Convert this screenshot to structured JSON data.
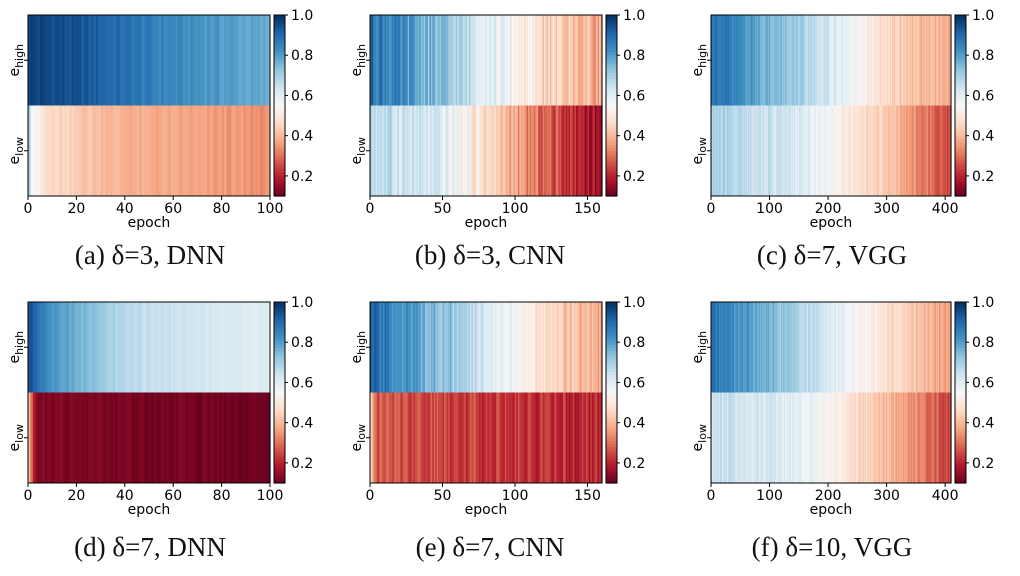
{
  "figure": {
    "colormap": "RdBu",
    "colors": {
      "red": "#67001f",
      "white": "#f7f7f7",
      "blue": "#053061"
    }
  },
  "chart_data": [
    {
      "type": "heatmap",
      "caption": "(a) δ=3, DNN",
      "rows": [
        "e_high",
        "e_low"
      ],
      "xlabel": "epoch",
      "xticks": [
        "0",
        "20",
        "40",
        "60",
        "80",
        "100"
      ],
      "xlim": [
        0,
        100
      ],
      "colorbar": {
        "range": [
          0.1,
          1.0
        ],
        "ticks": [
          "1.0",
          "0.8",
          "0.6",
          "0.4",
          "0.2"
        ]
      },
      "high_profile": [
        [
          0,
          0.97
        ],
        [
          20,
          0.94
        ],
        [
          60,
          0.84
        ],
        [
          100,
          0.77
        ]
      ],
      "low_profile": [
        [
          0,
          0.88
        ],
        [
          1,
          0.58
        ],
        [
          8,
          0.46
        ],
        [
          40,
          0.39
        ],
        [
          100,
          0.34
        ]
      ],
      "noise": 0.02
    },
    {
      "type": "heatmap",
      "caption": "(b) δ=3, CNN",
      "rows": [
        "e_high",
        "e_low"
      ],
      "xlabel": "epoch",
      "xticks": [
        "0",
        "50",
        "100",
        "150"
      ],
      "xlim": [
        0,
        160
      ],
      "colorbar": {
        "range": [
          0.1,
          1.0
        ],
        "ticks": [
          "1.0",
          "0.8",
          "0.6",
          "0.4",
          "0.2"
        ]
      },
      "high_profile": [
        [
          0,
          0.9
        ],
        [
          40,
          0.76
        ],
        [
          90,
          0.58
        ],
        [
          120,
          0.46
        ],
        [
          160,
          0.38
        ]
      ],
      "low_profile": [
        [
          0,
          0.68
        ],
        [
          50,
          0.6
        ],
        [
          80,
          0.47
        ],
        [
          110,
          0.32
        ],
        [
          160,
          0.16
        ]
      ],
      "noise": 0.06
    },
    {
      "type": "heatmap",
      "caption": "(c) δ=7, VGG",
      "rows": [
        "e_high",
        "e_low"
      ],
      "xlabel": "epoch",
      "xticks": [
        "0",
        "100",
        "200",
        "300",
        "400"
      ],
      "xlim": [
        0,
        410
      ],
      "colorbar": {
        "range": [
          0.1,
          1.0
        ],
        "ticks": [
          "1.0",
          "0.8",
          "0.6",
          "0.4",
          "0.2"
        ]
      },
      "high_profile": [
        [
          0,
          0.9
        ],
        [
          100,
          0.76
        ],
        [
          220,
          0.6
        ],
        [
          300,
          0.46
        ],
        [
          410,
          0.38
        ]
      ],
      "low_profile": [
        [
          0,
          0.7
        ],
        [
          150,
          0.62
        ],
        [
          230,
          0.52
        ],
        [
          320,
          0.4
        ],
        [
          410,
          0.24
        ]
      ],
      "noise": 0.04
    },
    {
      "type": "heatmap",
      "caption": "(d) δ=7, DNN",
      "rows": [
        "e_high",
        "e_low"
      ],
      "xlabel": "epoch",
      "xticks": [
        "0",
        "20",
        "40",
        "60",
        "80",
        "100"
      ],
      "xlim": [
        0,
        100
      ],
      "colorbar": {
        "range": [
          0.1,
          1.0
        ],
        "ticks": [
          "1.0",
          "0.8",
          "0.6",
          "0.4",
          "0.2"
        ]
      },
      "high_profile": [
        [
          0,
          0.95
        ],
        [
          10,
          0.82
        ],
        [
          40,
          0.67
        ],
        [
          100,
          0.6
        ]
      ],
      "low_profile": [
        [
          0,
          0.45
        ],
        [
          1,
          0.36
        ],
        [
          3,
          0.13
        ],
        [
          100,
          0.11
        ]
      ],
      "noise": 0.015
    },
    {
      "type": "heatmap",
      "caption": "(e) δ=7, CNN",
      "rows": [
        "e_high",
        "e_low"
      ],
      "xlabel": "epoch",
      "xticks": [
        "0",
        "50",
        "100",
        "150"
      ],
      "xlim": [
        0,
        160
      ],
      "colorbar": {
        "range": [
          0.1,
          1.0
        ],
        "ticks": [
          "1.0",
          "0.8",
          "0.6",
          "0.4",
          "0.2"
        ]
      },
      "high_profile": [
        [
          0,
          0.9
        ],
        [
          50,
          0.74
        ],
        [
          100,
          0.55
        ],
        [
          130,
          0.45
        ],
        [
          160,
          0.36
        ]
      ],
      "low_profile": [
        [
          0,
          0.5
        ],
        [
          5,
          0.27
        ],
        [
          60,
          0.25
        ],
        [
          160,
          0.2
        ]
      ],
      "noise": 0.05
    },
    {
      "type": "heatmap",
      "caption": "(f) δ=10, VGG",
      "rows": [
        "e_high",
        "e_low"
      ],
      "xlabel": "epoch",
      "xticks": [
        "0",
        "100",
        "200",
        "300",
        "400"
      ],
      "xlim": [
        0,
        410
      ],
      "colorbar": {
        "range": [
          0.1,
          1.0
        ],
        "ticks": [
          "1.0",
          "0.8",
          "0.6",
          "0.4",
          "0.2"
        ]
      },
      "high_profile": [
        [
          0,
          0.88
        ],
        [
          100,
          0.76
        ],
        [
          200,
          0.62
        ],
        [
          300,
          0.48
        ],
        [
          410,
          0.36
        ]
      ],
      "low_profile": [
        [
          0,
          0.66
        ],
        [
          150,
          0.6
        ],
        [
          230,
          0.5
        ],
        [
          320,
          0.38
        ],
        [
          410,
          0.24
        ]
      ],
      "noise": 0.04
    }
  ]
}
